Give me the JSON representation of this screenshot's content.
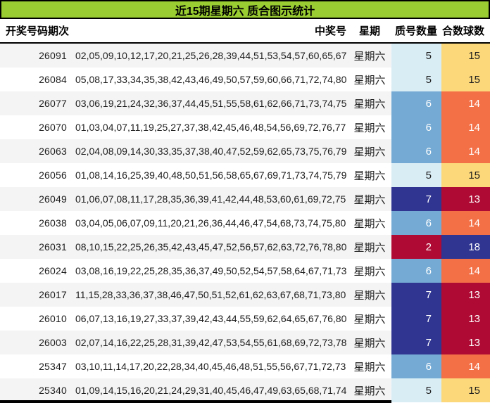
{
  "title": "近15期星期六 质合图示统计",
  "columns": {
    "period": "开奖号码期次",
    "numbers": "中奖号",
    "week": "星期",
    "prime_count": "质号数量",
    "composite_count": "合数球数"
  },
  "palette": {
    "title_bg": "#9acd32",
    "title_fg": "#000000",
    "row_alt_bg": "#f4f4f4",
    "count_colors": {
      "lightblue": {
        "bg": "#d9edf5",
        "fg": "#1d1d1d"
      },
      "yellow": {
        "bg": "#fcd87a",
        "fg": "#1d1d1d"
      },
      "blue": {
        "bg": "#74aad4",
        "fg": "#ffffff"
      },
      "orange": {
        "bg": "#f37047",
        "fg": "#ffffff"
      },
      "darkblue": {
        "bg": "#2f3591",
        "fg": "#ffffff"
      },
      "darkred": {
        "bg": "#ae0a33",
        "fg": "#ffffff"
      }
    }
  },
  "rows": [
    {
      "period": "26091",
      "numbers": "02,05,09,10,12,17,20,21,25,26,28,39,44,51,53,54,57,60,65,67",
      "week": "星期六",
      "prime": "5",
      "prime_color": "lightblue",
      "composite": "15",
      "composite_color": "yellow"
    },
    {
      "period": "26084",
      "numbers": "05,08,17,33,34,35,38,42,43,46,49,50,57,59,60,66,71,72,74,80",
      "week": "星期六",
      "prime": "5",
      "prime_color": "lightblue",
      "composite": "15",
      "composite_color": "yellow"
    },
    {
      "period": "26077",
      "numbers": "03,06,19,21,24,32,36,37,44,45,51,55,58,61,62,66,71,73,74,75",
      "week": "星期六",
      "prime": "6",
      "prime_color": "blue",
      "composite": "14",
      "composite_color": "orange"
    },
    {
      "period": "26070",
      "numbers": "01,03,04,07,11,19,25,27,37,38,42,45,46,48,54,56,69,72,76,77",
      "week": "星期六",
      "prime": "6",
      "prime_color": "blue",
      "composite": "14",
      "composite_color": "orange"
    },
    {
      "period": "26063",
      "numbers": "02,04,08,09,14,30,33,35,37,38,40,47,52,59,62,65,73,75,76,79",
      "week": "星期六",
      "prime": "6",
      "prime_color": "blue",
      "composite": "14",
      "composite_color": "orange"
    },
    {
      "period": "26056",
      "numbers": "01,08,14,16,25,39,40,48,50,51,56,58,65,67,69,71,73,74,75,79",
      "week": "星期六",
      "prime": "5",
      "prime_color": "lightblue",
      "composite": "15",
      "composite_color": "yellow"
    },
    {
      "period": "26049",
      "numbers": "01,06,07,08,11,17,28,35,36,39,41,42,44,48,53,60,61,69,72,75",
      "week": "星期六",
      "prime": "7",
      "prime_color": "darkblue",
      "composite": "13",
      "composite_color": "darkred"
    },
    {
      "period": "26038",
      "numbers": "03,04,05,06,07,09,11,20,21,26,36,44,46,47,54,68,73,74,75,80",
      "week": "星期六",
      "prime": "6",
      "prime_color": "blue",
      "composite": "14",
      "composite_color": "orange"
    },
    {
      "period": "26031",
      "numbers": "08,10,15,22,25,26,35,42,43,45,47,52,56,57,62,63,72,76,78,80",
      "week": "星期六",
      "prime": "2",
      "prime_color": "darkred",
      "composite": "18",
      "composite_color": "darkblue"
    },
    {
      "period": "26024",
      "numbers": "03,08,16,19,22,25,28,35,36,37,49,50,52,54,57,58,64,67,71,73",
      "week": "星期六",
      "prime": "6",
      "prime_color": "blue",
      "composite": "14",
      "composite_color": "orange"
    },
    {
      "period": "26017",
      "numbers": "11,15,28,33,36,37,38,46,47,50,51,52,61,62,63,67,68,71,73,80",
      "week": "星期六",
      "prime": "7",
      "prime_color": "darkblue",
      "composite": "13",
      "composite_color": "darkred"
    },
    {
      "period": "26010",
      "numbers": "06,07,13,16,19,27,33,37,39,42,43,44,55,59,62,64,65,67,76,80",
      "week": "星期六",
      "prime": "7",
      "prime_color": "darkblue",
      "composite": "13",
      "composite_color": "darkred"
    },
    {
      "period": "26003",
      "numbers": "02,07,14,16,22,25,28,31,39,42,47,53,54,55,61,68,69,72,73,78",
      "week": "星期六",
      "prime": "7",
      "prime_color": "darkblue",
      "composite": "13",
      "composite_color": "darkred"
    },
    {
      "period": "25347",
      "numbers": "03,10,11,14,17,20,22,28,34,40,45,46,48,51,55,56,67,71,72,73",
      "week": "星期六",
      "prime": "6",
      "prime_color": "blue",
      "composite": "14",
      "composite_color": "orange"
    },
    {
      "period": "25340",
      "numbers": "01,09,14,15,16,20,21,24,29,31,40,45,46,47,49,63,65,68,71,74",
      "week": "星期六",
      "prime": "5",
      "prime_color": "lightblue",
      "composite": "15",
      "composite_color": "yellow"
    }
  ]
}
